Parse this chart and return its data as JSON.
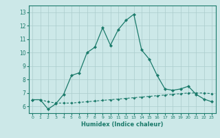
{
  "title": "",
  "xlabel": "Humidex (Indice chaleur)",
  "background_color": "#cce8e8",
  "grid_color": "#aacccc",
  "line_color": "#1a7a6a",
  "xlim": [
    -0.5,
    23.5
  ],
  "ylim": [
    5.5,
    13.5
  ],
  "xticks": [
    0,
    1,
    2,
    3,
    4,
    5,
    6,
    7,
    8,
    9,
    10,
    11,
    12,
    13,
    14,
    15,
    16,
    17,
    18,
    19,
    20,
    21,
    22,
    23
  ],
  "yticks": [
    6,
    7,
    8,
    9,
    10,
    11,
    12,
    13
  ],
  "curve1_x": [
    0,
    1,
    2,
    3,
    4,
    5,
    6,
    7,
    8,
    9,
    10,
    11,
    12,
    13,
    14,
    15,
    16,
    17,
    18,
    19,
    20,
    21,
    22,
    23
  ],
  "curve1_y": [
    6.5,
    6.5,
    5.8,
    6.2,
    6.9,
    8.3,
    8.5,
    10.0,
    10.4,
    11.85,
    10.55,
    11.7,
    12.4,
    12.85,
    10.2,
    9.5,
    8.3,
    7.3,
    7.2,
    7.3,
    7.5,
    6.9,
    6.55,
    6.35
  ],
  "curve2_x": [
    0,
    1,
    2,
    3,
    4,
    5,
    6,
    7,
    8,
    9,
    10,
    11,
    12,
    13,
    14,
    15,
    16,
    17,
    18,
    19,
    20,
    21,
    22,
    23
  ],
  "curve2_y": [
    6.5,
    6.5,
    6.35,
    6.25,
    6.25,
    6.25,
    6.3,
    6.35,
    6.4,
    6.45,
    6.5,
    6.55,
    6.6,
    6.65,
    6.7,
    6.75,
    6.8,
    6.85,
    6.9,
    6.95,
    7.0,
    7.0,
    7.0,
    6.95
  ]
}
